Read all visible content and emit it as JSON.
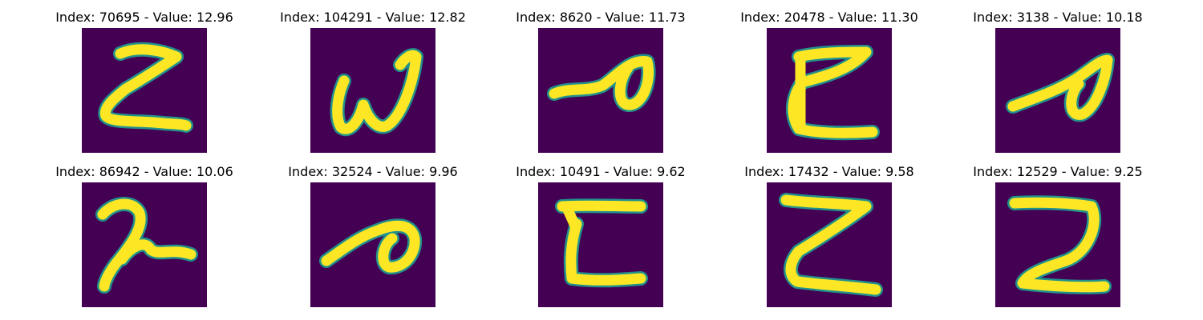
{
  "colors": {
    "background": "#440154",
    "edge": "#21918c",
    "stroke": "#fde725"
  },
  "panels": [
    {
      "title": "Index: 70695 - Value: 12.96"
    },
    {
      "title": "Index: 104291 - Value: 12.82"
    },
    {
      "title": "Index: 8620 - Value: 11.73"
    },
    {
      "title": "Index: 20478 - Value: 11.30"
    },
    {
      "title": "Index: 3138 - Value: 10.18"
    },
    {
      "title": "Index: 86942 - Value: 10.06"
    },
    {
      "title": "Index: 32524 - Value: 9.96"
    },
    {
      "title": "Index: 10491 - Value: 9.62"
    },
    {
      "title": "Index: 17432 - Value: 9.58"
    },
    {
      "title": "Index: 12529 - Value: 9.25"
    }
  ]
}
